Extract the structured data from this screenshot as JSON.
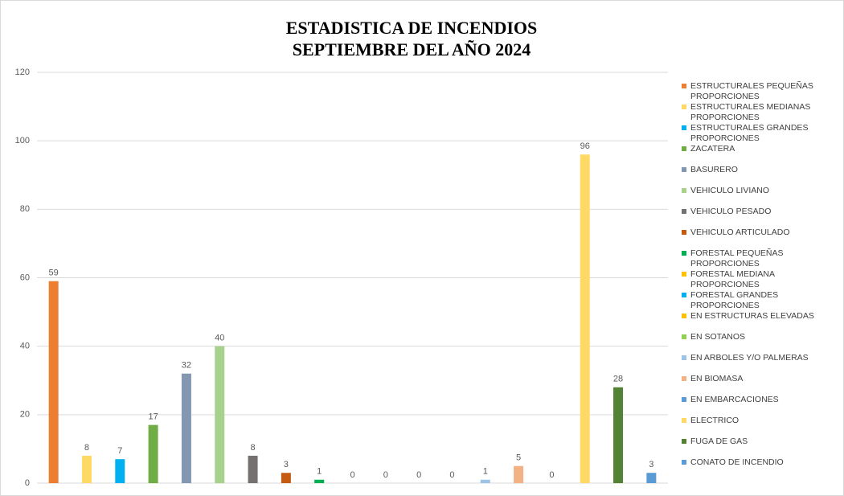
{
  "chart_data": {
    "type": "bar",
    "title": "ESTADISTICA DE INCENDIOS",
    "subtitle": "SEPTIEMBRE DEL AÑO 2024",
    "ylim": [
      0,
      120
    ],
    "yticks": [
      0,
      20,
      40,
      60,
      80,
      100,
      120
    ],
    "grid": true,
    "legend": "right",
    "series": [
      {
        "name": "ESTRUCTURALES PEQUEÑAS PROPORCIONES",
        "color": "#ED7D31",
        "values": [
          59
        ]
      },
      {
        "name": "ESTRUCTURALES MEDIANAS PROPORCIONES",
        "color": "#FFD966",
        "values": [
          8
        ]
      },
      {
        "name": "ESTRUCTURALES GRANDES PROPORCIONES",
        "color": "#00B0F0",
        "values": [
          7
        ]
      },
      {
        "name": "ZACATERA",
        "color": "#70AD47",
        "values": [
          17
        ]
      },
      {
        "name": "BASURERO",
        "color": "#8497B0",
        "values": [
          32
        ]
      },
      {
        "name": "VEHICULO LIVIANO",
        "color": "#A9D18E",
        "values": [
          40
        ]
      },
      {
        "name": "VEHICULO PESADO",
        "color": "#767171",
        "values": [
          8
        ]
      },
      {
        "name": "VEHICULO ARTICULADO",
        "color": "#C55A11",
        "values": [
          3
        ]
      },
      {
        "name": "FORESTAL PEQUEÑAS PROPORCIONES",
        "color": "#00B050",
        "values": [
          1
        ]
      },
      {
        "name": "FORESTAL MEDIANA PROPORCIONES",
        "color": "#FFC000",
        "values": [
          0
        ]
      },
      {
        "name": "FORESTAL GRANDES PROPORCIONES",
        "color": "#00B0F0",
        "values": [
          0
        ]
      },
      {
        "name": "EN ESTRUCTURAS ELEVADAS",
        "color": "#FFC000",
        "values": [
          0
        ]
      },
      {
        "name": "EN SOTANOS",
        "color": "#92D050",
        "values": [
          0
        ]
      },
      {
        "name": "EN ARBOLES Y/O PALMERAS",
        "color": "#9DC3E6",
        "values": [
          1
        ]
      },
      {
        "name": "EN BIOMASA",
        "color": "#F4B183",
        "values": [
          5
        ]
      },
      {
        "name": "EN EMBARCACIONES",
        "color": "#5B9BD5",
        "values": [
          0
        ]
      },
      {
        "name": "ELECTRICO",
        "color": "#FFD966",
        "values": [
          96
        ]
      },
      {
        "name": "FUGA DE GAS",
        "color": "#548235",
        "values": [
          28
        ]
      },
      {
        "name": "CONATO DE INCENDIO",
        "color": "#5B9BD5",
        "values": [
          3
        ]
      }
    ]
  }
}
